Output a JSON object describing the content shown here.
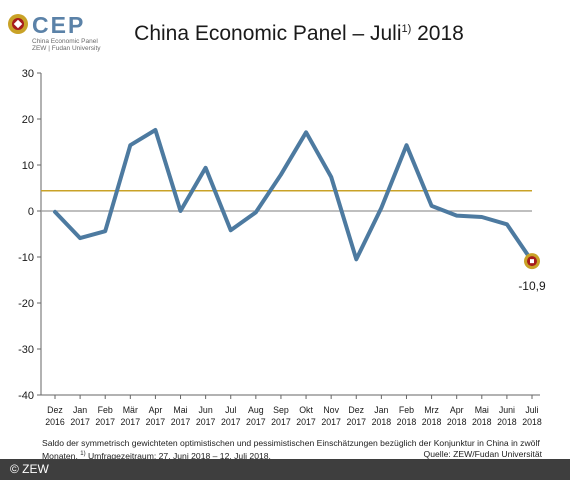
{
  "header": {
    "logo_name": "CEP",
    "logo_sub1": "China Economic Panel",
    "logo_sub2": "ZEW | Fudan University",
    "title_main": "China Economic Panel – Juli",
    "title_sup": "1)",
    "title_year": " 2018"
  },
  "chart_data": {
    "type": "line",
    "categories": [
      [
        "Dez",
        "2016"
      ],
      [
        "Jan",
        "2017"
      ],
      [
        "Feb",
        "2017"
      ],
      [
        "Mär",
        "2017"
      ],
      [
        "Apr",
        "2017"
      ],
      [
        "Mai",
        "2017"
      ],
      [
        "Jun",
        "2017"
      ],
      [
        "Jul",
        "2017"
      ],
      [
        "Aug",
        "2017"
      ],
      [
        "Sep",
        "2017"
      ],
      [
        "Okt",
        "2017"
      ],
      [
        "Nov",
        "2017"
      ],
      [
        "Dez",
        "2017"
      ],
      [
        "Jan",
        "2018"
      ],
      [
        "Feb",
        "2018"
      ],
      [
        "Mrz",
        "2018"
      ],
      [
        "Apr",
        "2018"
      ],
      [
        "Mai",
        "2018"
      ],
      [
        "Juni",
        "2018"
      ],
      [
        "Juli",
        "2018"
      ]
    ],
    "values": [
      -0.2,
      -5.9,
      -4.4,
      14.3,
      17.6,
      0.0,
      9.4,
      -4.2,
      -0.3,
      7.9,
      17.1,
      7.4,
      -10.5,
      0.7,
      14.3,
      1.1,
      -1.0,
      -1.3,
      -2.9,
      -10.9
    ],
    "reference_value": 4.4,
    "yticks": [
      30,
      20,
      10,
      0,
      -10,
      -20,
      -30,
      -40
    ],
    "ylim": [
      -40,
      30
    ],
    "grid": false,
    "line_color": "#4d7aa0",
    "reference_color": "#c9a227",
    "zero_color": "#999999",
    "marker_colors": {
      "outer": "#c9a227",
      "inner": "#a61b1b"
    },
    "last_label": "-10,9"
  },
  "footnote": {
    "line1": "Saldo der symmetrisch gewichteten optimistischen und pessimistischen Einschätzungen bezüglich der Konjunktur in China in zwölf",
    "line2_a": "Monaten.",
    "line2_sup": "1)",
    "line2_b": " Umfragezeitraum: 27. Juni 2018 – 12. Juli 2018.",
    "source": "Quelle: ZEW/Fudan Universität"
  },
  "footer": {
    "copyright": "© ZEW"
  }
}
